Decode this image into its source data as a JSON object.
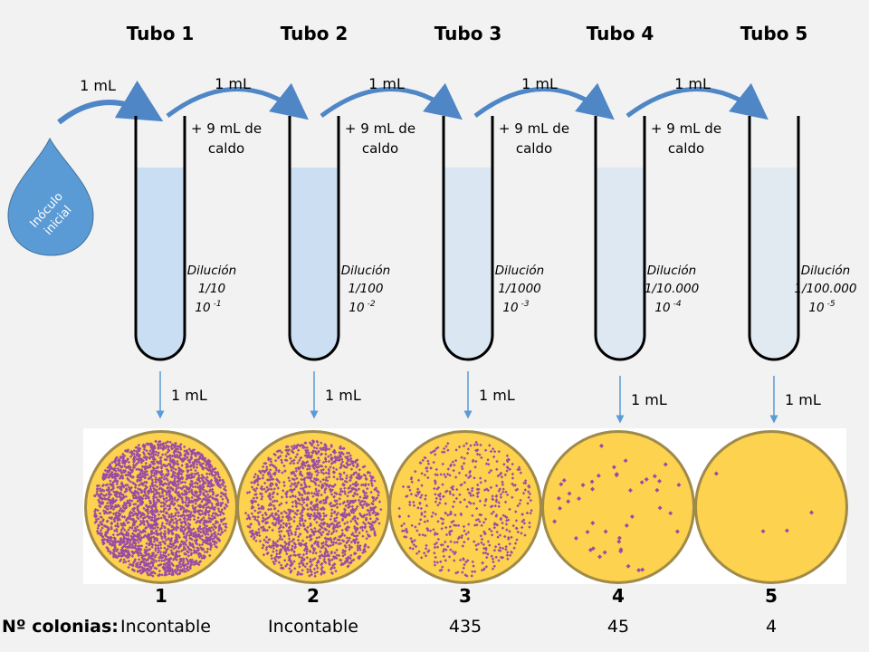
{
  "tubes": [
    {
      "title": "Tubo 1",
      "dilution_label": "Dilución",
      "fraction": "1/10",
      "power_base": "10",
      "power_exp": "-1",
      "transfer": "1 mL",
      "plate_number": "1",
      "colonies": "Incontable"
    },
    {
      "title": "Tubo 2",
      "dilution_label": "Dilución",
      "fraction": "1/100",
      "power_base": "10",
      "power_exp": "-2",
      "transfer": "1 mL",
      "plate_number": "2",
      "colonies": "Incontable"
    },
    {
      "title": "Tubo 3",
      "dilution_label": "Dilución",
      "fraction": "1/1000",
      "power_base": "10",
      "power_exp": "-3",
      "transfer": "1 mL",
      "plate_number": "3",
      "colonies": "435"
    },
    {
      "title": "Tubo 4",
      "dilution_label": "Dilución",
      "fraction": "1/10.000",
      "power_base": "10",
      "power_exp": "-4",
      "transfer": "1 mL",
      "plate_number": "4",
      "colonies": "45"
    },
    {
      "title": "Tubo 5",
      "dilution_label": "Dilución",
      "fraction": "1/100.000",
      "power_base": "10",
      "power_exp": "-5",
      "transfer": "1 mL",
      "plate_number": "5",
      "colonies": "4"
    }
  ],
  "inoculum": {
    "label_line1": "Inóculo",
    "label_line2": "inicial",
    "transfer": "1 mL"
  },
  "serial_transfers": [
    "1 mL",
    "1 mL",
    "1 mL",
    "1 mL"
  ],
  "broth": {
    "line1": "+ 9 mL de",
    "line2": "caldo"
  },
  "colonies_label": "Nº colonias:",
  "colors": {
    "arrow": "#4f86c6",
    "drop": "#5b9bd5",
    "agar": "#fcd24f",
    "colony": "#9b4aa5",
    "liquid": "#c6dcf2"
  }
}
